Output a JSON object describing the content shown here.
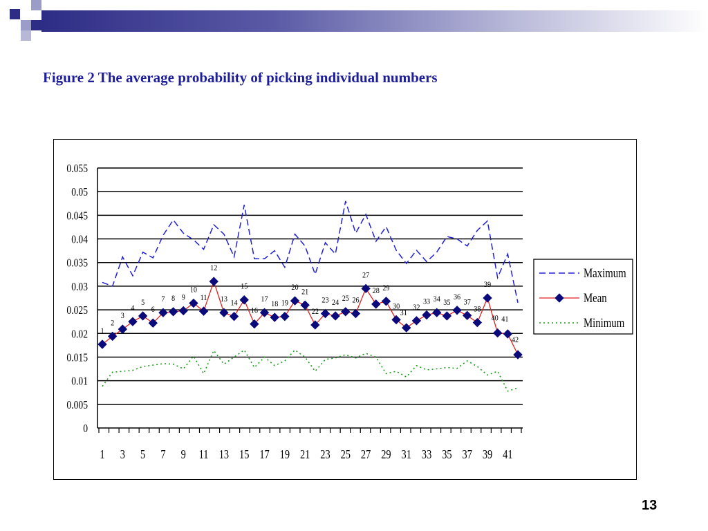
{
  "slide": {
    "title": "Figure 2 The average probability of picking individual numbers",
    "page_number": "13"
  },
  "colors": {
    "title": "#1e1e9a",
    "maximum": "#1f1fd6",
    "mean_line": "#e02020",
    "mean_marker": "#0a0a7a",
    "minimum": "#1a9a1a",
    "decor_dark": "#2e2d86",
    "decor_light": "#9c9cc9"
  },
  "chart_data": {
    "type": "line",
    "title": "",
    "xlabel": "",
    "ylabel": "",
    "ylim": [
      0,
      0.055
    ],
    "yticks": [
      "0",
      "0.005",
      "0.01",
      "0.015",
      "0.02",
      "0.025",
      "0.03",
      "0.035",
      "0.04",
      "0.045",
      "0.05",
      "0.055"
    ],
    "x": [
      1,
      2,
      3,
      4,
      5,
      6,
      7,
      8,
      9,
      10,
      11,
      12,
      13,
      14,
      15,
      16,
      17,
      18,
      19,
      20,
      21,
      22,
      23,
      24,
      25,
      26,
      27,
      28,
      29,
      30,
      31,
      32,
      33,
      34,
      35,
      36,
      37,
      38,
      39,
      40,
      41,
      42
    ],
    "xtick_labels": [
      "1",
      "3",
      "5",
      "7",
      "9",
      "11",
      "13",
      "15",
      "17",
      "19",
      "21",
      "23",
      "25",
      "27",
      "29",
      "31",
      "33",
      "35",
      "37",
      "39",
      "41"
    ],
    "grid": true,
    "legend_position": "right",
    "series": [
      {
        "name": "Maximum",
        "style": "dashed",
        "values": [
          0.0308,
          0.03,
          0.0362,
          0.0322,
          0.0372,
          0.036,
          0.0408,
          0.044,
          0.0412,
          0.0398,
          0.0378,
          0.043,
          0.041,
          0.0362,
          0.0472,
          0.0358,
          0.0358,
          0.0375,
          0.034,
          0.041,
          0.0385,
          0.0325,
          0.0392,
          0.0368,
          0.048,
          0.0412,
          0.0452,
          0.0395,
          0.0426,
          0.0376,
          0.0348,
          0.0376,
          0.0352,
          0.0372,
          0.0405,
          0.04,
          0.0385,
          0.0418,
          0.0438,
          0.0318,
          0.0368,
          0.0265
        ]
      },
      {
        "name": "Mean",
        "style": "solid-diamond",
        "values": [
          0.0177,
          0.0194,
          0.0209,
          0.0225,
          0.0237,
          0.0222,
          0.0244,
          0.0246,
          0.0248,
          0.0264,
          0.0247,
          0.031,
          0.0244,
          0.0236,
          0.0271,
          0.022,
          0.0244,
          0.0234,
          0.0236,
          0.0269,
          0.026,
          0.0218,
          0.0242,
          0.0237,
          0.0246,
          0.0242,
          0.0295,
          0.0262,
          0.0268,
          0.0229,
          0.0212,
          0.0227,
          0.0239,
          0.0244,
          0.0237,
          0.0249,
          0.0238,
          0.0223,
          0.0275,
          0.0201,
          0.0199,
          0.0155
        ]
      },
      {
        "name": "Minimum",
        "style": "dotted",
        "values": [
          0.0088,
          0.0118,
          0.012,
          0.0122,
          0.013,
          0.0133,
          0.0136,
          0.0135,
          0.0125,
          0.0152,
          0.0115,
          0.0164,
          0.0135,
          0.015,
          0.0165,
          0.0128,
          0.015,
          0.0132,
          0.0142,
          0.0165,
          0.015,
          0.012,
          0.0145,
          0.0148,
          0.0155,
          0.0148,
          0.0158,
          0.015,
          0.0115,
          0.012,
          0.0108,
          0.0132,
          0.0123,
          0.0125,
          0.0128,
          0.0126,
          0.0142,
          0.013,
          0.0112,
          0.012,
          0.0078,
          0.0085
        ]
      }
    ],
    "point_labels": [
      "1",
      "2",
      "3",
      "4",
      "5",
      "6",
      "7",
      "8",
      "9",
      "10",
      "11",
      "12",
      "13",
      "14",
      "15",
      "16",
      "17",
      "18",
      "19",
      "20",
      "21",
      "22",
      "23",
      "24",
      "25",
      "26",
      "27",
      "28",
      "29",
      "30",
      "31",
      "32",
      "33",
      "34",
      "35",
      "36",
      "37",
      "38",
      "39",
      "40",
      "41",
      "42"
    ],
    "point_label_side": [
      "above",
      "above",
      "above",
      "above",
      "above",
      "above",
      "above",
      "above",
      "above",
      "above",
      "above",
      "above",
      "above",
      "above",
      "above",
      "above",
      "above",
      "above",
      "above",
      "above",
      "above",
      "above",
      "above",
      "above",
      "above",
      "above",
      "above",
      "above",
      "above",
      "above",
      "below",
      "above",
      "above",
      "above",
      "above",
      "above",
      "above",
      "above",
      "above",
      "below",
      "below",
      "below"
    ]
  }
}
